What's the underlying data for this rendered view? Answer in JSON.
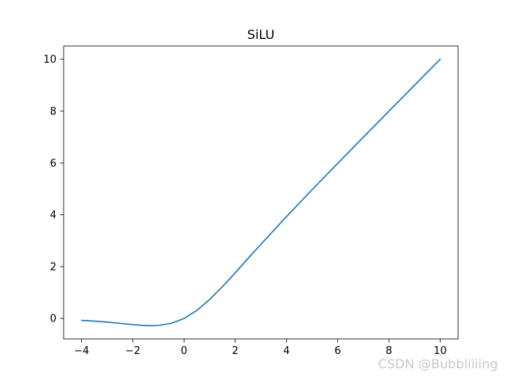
{
  "chart_data": {
    "type": "line",
    "title": "SiLU",
    "xlabel": "",
    "ylabel": "",
    "xlim": [
      -4.7,
      10.7
    ],
    "ylim": [
      -0.79,
      10.51
    ],
    "xticks": [
      -4,
      -2,
      0,
      2,
      4,
      6,
      8,
      10
    ],
    "xtick_labels": [
      "−4",
      "−2",
      "0",
      "2",
      "4",
      "6",
      "8",
      "10"
    ],
    "yticks": [
      0,
      2,
      4,
      6,
      8,
      10
    ],
    "ytick_labels": [
      "0",
      "2",
      "4",
      "6",
      "8",
      "10"
    ],
    "grid": false,
    "color": "#1f77b4",
    "series": [
      {
        "x": [
          -4,
          -3.5,
          -3,
          -2.5,
          -2,
          -1.5,
          -1.278,
          -1,
          -0.5,
          0,
          0.5,
          1,
          1.5,
          2,
          2.5,
          3,
          3.5,
          4,
          5,
          6,
          7,
          8,
          9,
          10
        ],
        "values": [
          -0.072,
          -0.102,
          -0.142,
          -0.189,
          -0.238,
          -0.274,
          -0.278,
          -0.269,
          -0.189,
          0,
          0.311,
          0.731,
          1.226,
          1.762,
          2.317,
          2.858,
          3.395,
          3.928,
          4.967,
          5.985,
          6.994,
          7.997,
          8.999,
          10.0
        ]
      }
    ]
  },
  "watermark": "CSDN @Bubbliiiing"
}
